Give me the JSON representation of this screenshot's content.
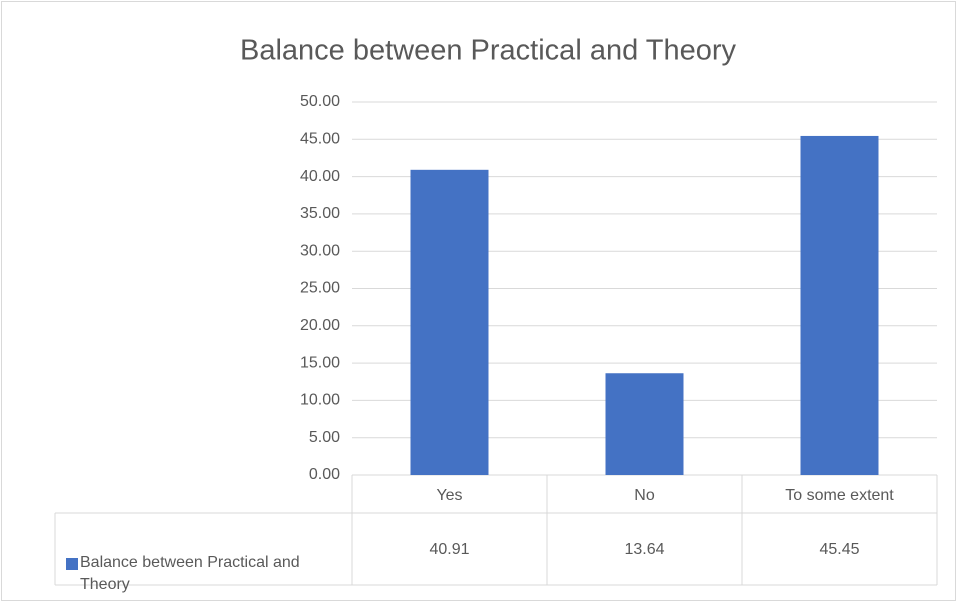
{
  "chart_data": {
    "type": "bar",
    "title": "Balance between Practical and Theory",
    "categories": [
      "Yes",
      "No",
      "To some extent"
    ],
    "series": [
      {
        "name": "Balance between Practical and Theory",
        "color": "#4472c4",
        "values": [
          40.91,
          13.64,
          45.45
        ]
      }
    ],
    "ylim": [
      0,
      50
    ],
    "yticks": [
      {
        "value": 0,
        "label": "0.00"
      },
      {
        "value": 5,
        "label": "5.00"
      },
      {
        "value": 10,
        "label": "10.00"
      },
      {
        "value": 15,
        "label": "15.00"
      },
      {
        "value": 20,
        "label": "20.00"
      },
      {
        "value": 25,
        "label": "25.00"
      },
      {
        "value": 30,
        "label": "30.00"
      },
      {
        "value": 35,
        "label": "35.00"
      },
      {
        "value": 40,
        "label": "40.00"
      },
      {
        "value": 45,
        "label": "45.00"
      },
      {
        "value": 50,
        "label": "50.00"
      }
    ],
    "grid": true
  }
}
